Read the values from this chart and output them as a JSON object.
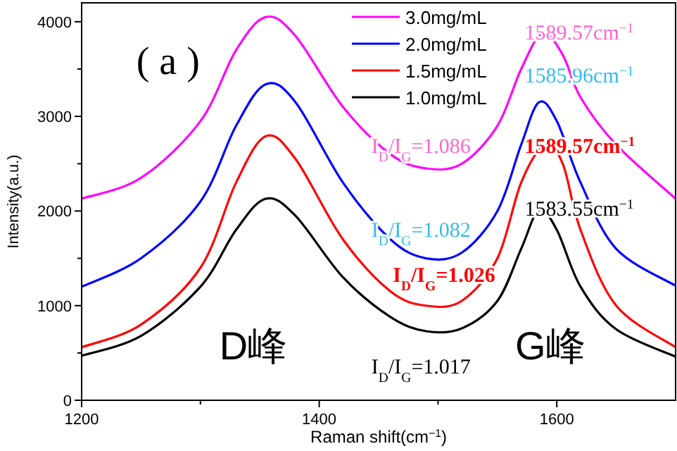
{
  "chart_data": {
    "type": "line",
    "xlabel": "Raman shift(cm$^{−1}$)",
    "ylabel": "Intensity(a.u.)",
    "xlim": [
      1200,
      1700
    ],
    "ylim": [
      0,
      4200
    ],
    "xticks": [
      1200,
      {
        "value": 1300,
        "label": null
      },
      1400,
      {
        "value": 1500,
        "label": null
      },
      1600
    ],
    "yticks": [
      0,
      {
        "value": 500,
        "label": null
      },
      1000,
      {
        "value": 1500,
        "label": null
      },
      2000,
      {
        "value": 2500,
        "label": null
      },
      3000,
      {
        "value": 3500,
        "label": null
      },
      4000
    ],
    "legend": "top right",
    "grid": false,
    "marker": "none",
    "line_style": "solid",
    "series": [
      {
        "name": "3.0mg/mL",
        "color": "#ff00ff",
        "x": [
          1200,
          1250,
          1300,
          1330,
          1355,
          1380,
          1420,
          1460,
          1490,
          1520,
          1550,
          1570,
          1588,
          1605,
          1620,
          1650,
          1700
        ],
        "values": [
          2130,
          2350,
          2950,
          3700,
          4050,
          3850,
          3100,
          2600,
          2450,
          2500,
          2900,
          3500,
          3880,
          3650,
          3200,
          2700,
          2130
        ]
      },
      {
        "name": "2.0mg/mL",
        "color": "#0000ff",
        "x": [
          1200,
          1250,
          1300,
          1330,
          1355,
          1380,
          1420,
          1460,
          1490,
          1520,
          1550,
          1570,
          1585,
          1600,
          1620,
          1650,
          1700
        ],
        "values": [
          1200,
          1500,
          2100,
          2900,
          3340,
          3150,
          2300,
          1700,
          1500,
          1560,
          2000,
          2700,
          3150,
          2950,
          2300,
          1600,
          1210
        ]
      },
      {
        "name": "1.5mg/mL",
        "color": "#ff0000",
        "x": [
          1200,
          1250,
          1300,
          1330,
          1355,
          1380,
          1420,
          1460,
          1490,
          1520,
          1550,
          1570,
          1590,
          1605,
          1620,
          1650,
          1700
        ],
        "values": [
          560,
          800,
          1400,
          2300,
          2790,
          2550,
          1700,
          1150,
          1000,
          1050,
          1500,
          2300,
          2700,
          2500,
          1800,
          1000,
          560
        ]
      },
      {
        "name": "1.0mg/mL",
        "color": "#000000",
        "x": [
          1200,
          1250,
          1300,
          1330,
          1355,
          1380,
          1420,
          1460,
          1490,
          1520,
          1550,
          1570,
          1585,
          1600,
          1620,
          1650,
          1700
        ],
        "values": [
          470,
          680,
          1200,
          1800,
          2130,
          1950,
          1300,
          880,
          730,
          760,
          1050,
          1600,
          2010,
          1800,
          1200,
          750,
          460
        ]
      }
    ],
    "annotations": [
      "( a )",
      "1589.57cm$^{−1}$",
      "1585.96cm$^{−1}$",
      "I$_{D}$/I$_{G}$=1.086",
      "1589.57cm$^{−1}$",
      "1583.55cm$^{−1}$",
      "I$_{D}$/I$_{G}$=1.082",
      "I$_{D}$/I$_{G}$=1.026",
      "D峰",
      "G峰",
      "I$_{D}$/I$_{G}$=1.017"
    ]
  }
}
